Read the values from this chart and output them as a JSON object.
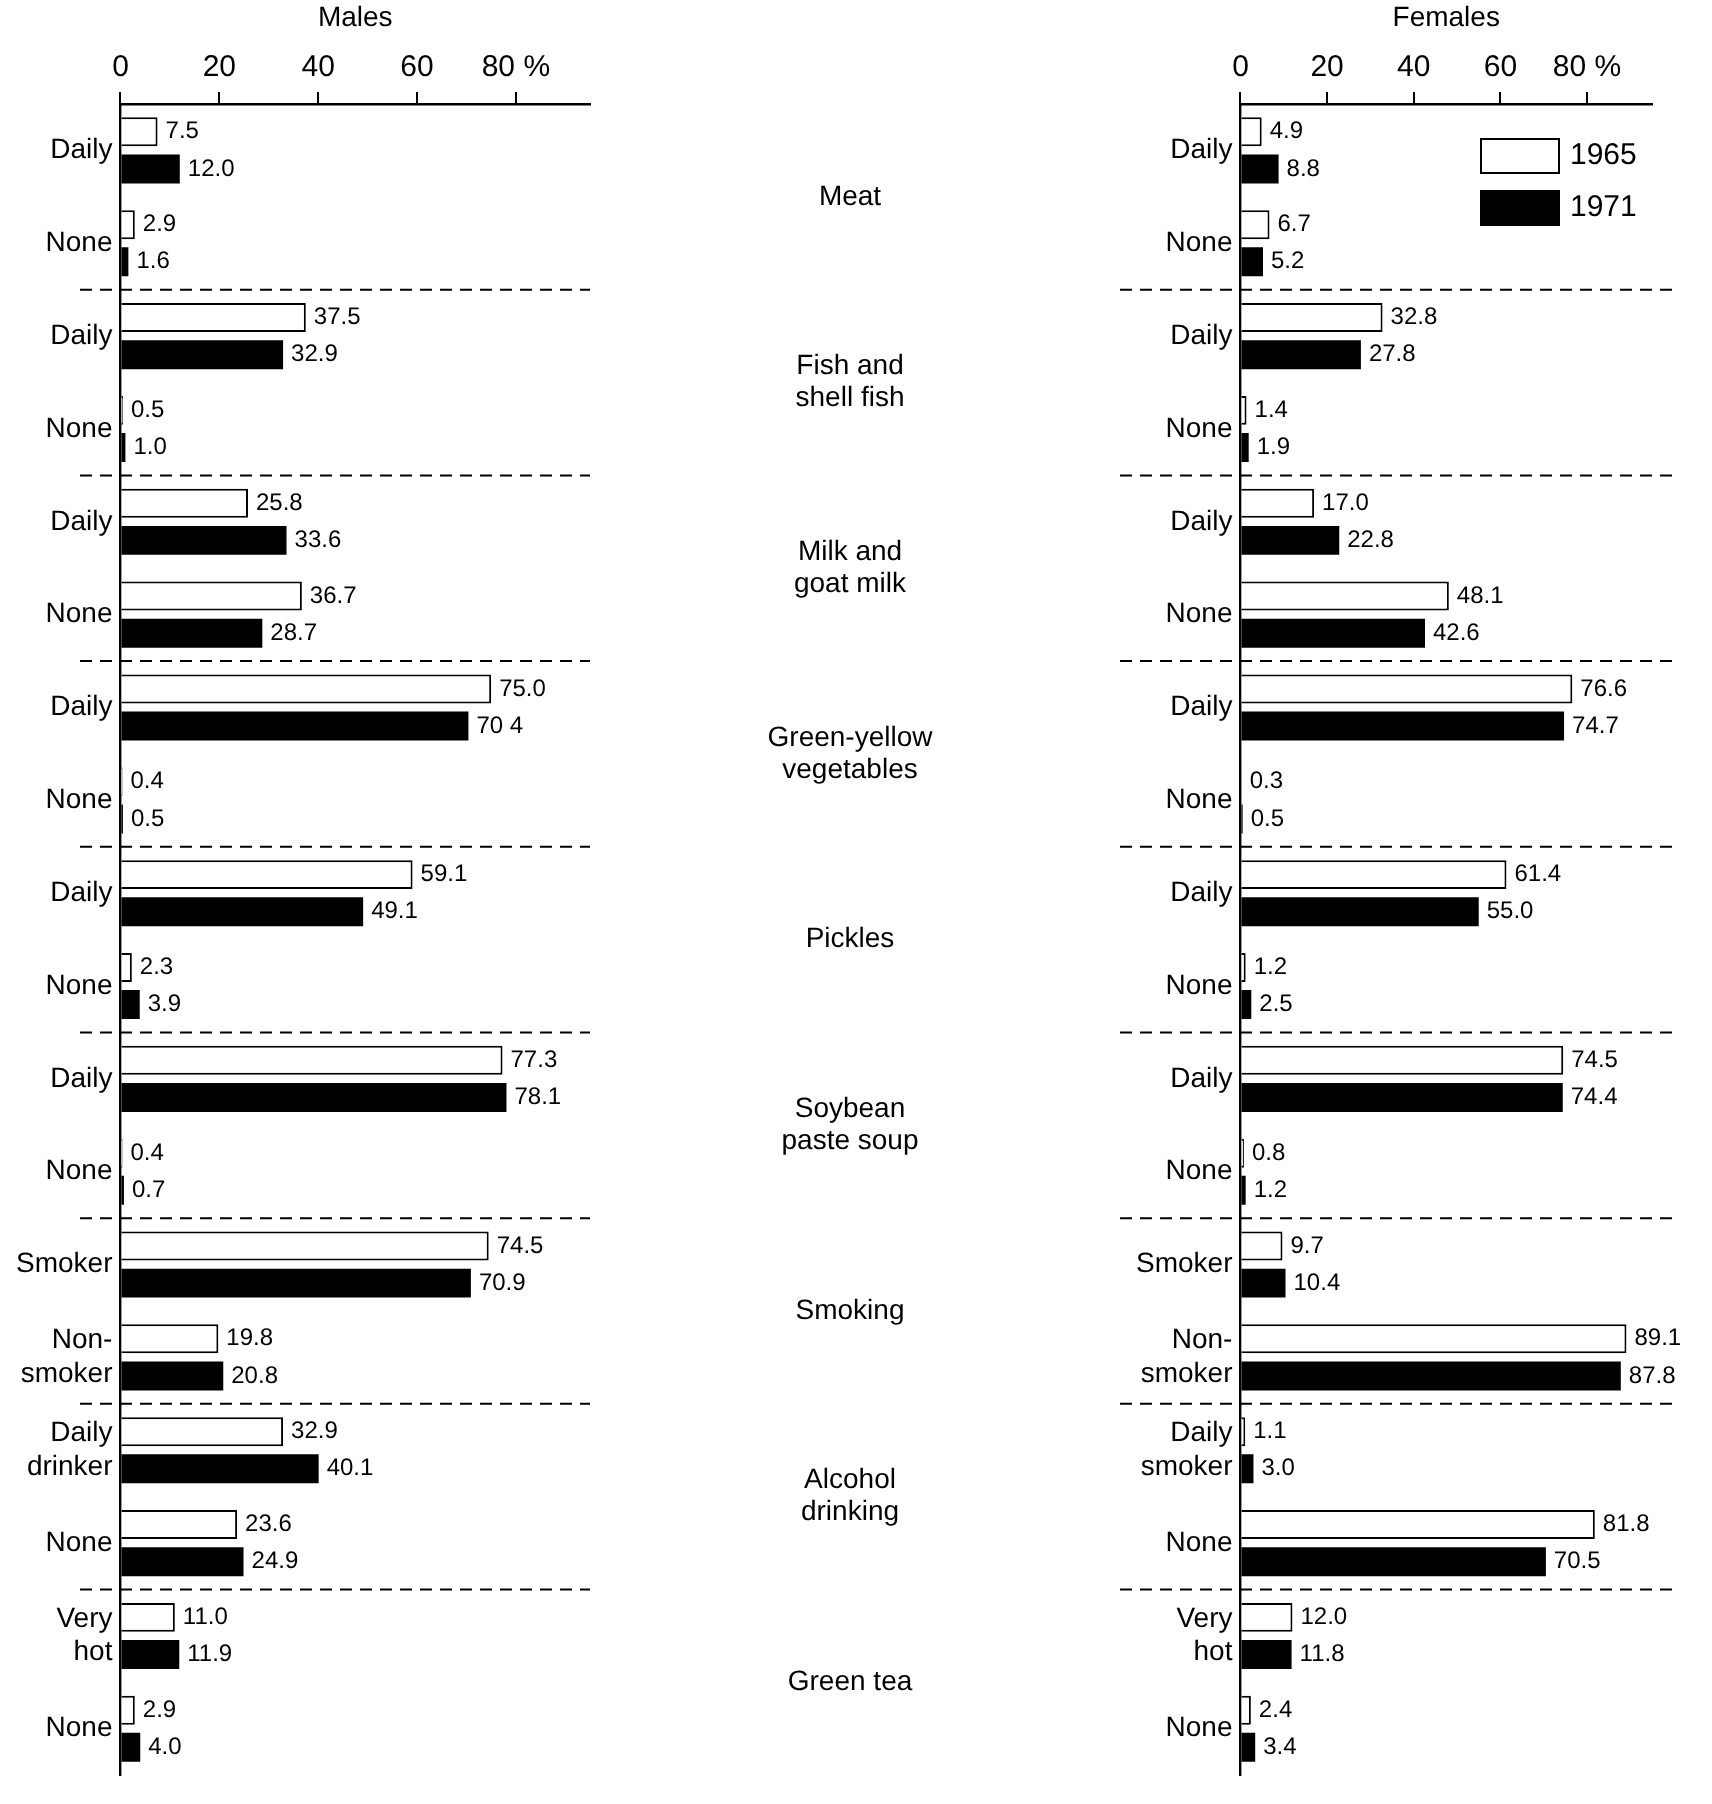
{
  "chart_data": [
    {
      "type": "bar",
      "orientation": "horizontal",
      "title": "Males",
      "categories": [
        "Daily",
        "None",
        "Daily",
        "None",
        "Daily",
        "None",
        "Daily",
        "None",
        "Daily",
        "None",
        "Daily",
        "None",
        "Smoker",
        "Non-smoker",
        "Daily drinker",
        "None",
        "Very hot",
        "None"
      ],
      "series": [
        {
          "color": "#ffffff",
          "values": [
            7.5,
            2.9,
            37.5,
            0.5,
            25.8,
            36.7,
            75.0,
            0.4,
            59.1,
            2.3,
            77.3,
            0.4,
            74.5,
            19.8,
            32.9,
            23.6,
            11.0,
            2.9
          ],
          "value_labels": [
            "7.5",
            "2.9",
            "37.5",
            "0.5",
            "25.8",
            "36.7",
            "75.0",
            "0.4",
            "59.1",
            "2.3",
            "77.3",
            "0.4",
            "74.5",
            "19.8",
            "32.9",
            "23.6",
            "11.0",
            "2.9"
          ]
        },
        {
          "color": "#000000",
          "values": [
            12.0,
            1.6,
            32.9,
            1.0,
            33.6,
            28.7,
            70.4,
            0.5,
            49.1,
            3.9,
            78.1,
            0.7,
            70.9,
            20.8,
            40.1,
            24.9,
            11.9,
            4.0
          ],
          "value_labels": [
            "12.0",
            "1.6",
            "32.9",
            "1.0",
            "33.6",
            "28.7",
            "70 4",
            "0.5",
            "49.1",
            "3.9",
            "78.1",
            "0.7",
            "70.9",
            "20.8",
            "40.1",
            "24.9",
            "11.9",
            "4.0"
          ]
        }
      ],
      "xlim": [
        0,
        95
      ],
      "xticks": [
        0,
        20,
        40,
        60,
        {
          "value": 80,
          "label": "80 %"
        }
      ],
      "grid": false,
      "legend": false,
      "annotations": [
        "Meat",
        "Fish and shell fish",
        "Milk and goat milk",
        "Green-yellow vegetables",
        "Pickles",
        "Soybean paste soup",
        "Smoking",
        "Alcohol drinking",
        "Green tea"
      ]
    },
    {
      "type": "bar",
      "orientation": "horizontal",
      "title": "Females",
      "categories": [
        "Daily",
        "None",
        "Daily",
        "None",
        "Daily",
        "None",
        "Daily",
        "None",
        "Daily",
        "None",
        "Daily",
        "None",
        "Smoker",
        "Non-smoker",
        "Daily smoker",
        "None",
        "Very hot",
        "None"
      ],
      "series": [
        {
          "name": "1965",
          "color": "#ffffff",
          "values": [
            4.9,
            6.7,
            32.8,
            1.4,
            17.0,
            48.1,
            76.6,
            0.3,
            61.4,
            1.2,
            74.5,
            0.8,
            9.7,
            89.1,
            1.1,
            81.8,
            12.0,
            2.4
          ],
          "value_labels": [
            "4.9",
            "6.7",
            "32.8",
            "1.4",
            "17.0",
            "48.1",
            "76.6",
            "0.3",
            "61.4",
            "1.2",
            "74.5",
            "0.8",
            "9.7",
            "89.1",
            "1.1",
            "81.8",
            "12.0",
            "2.4"
          ]
        },
        {
          "name": "1971",
          "color": "#000000",
          "values": [
            8.8,
            5.2,
            27.8,
            1.9,
            22.8,
            42.6,
            74.7,
            0.5,
            55.0,
            2.5,
            74.4,
            1.2,
            10.4,
            87.8,
            3.0,
            70.5,
            11.8,
            3.4
          ],
          "value_labels": [
            "8.8",
            "5.2",
            "27.8",
            "1.9",
            "22.8",
            "42.6",
            "74.7",
            "0.5",
            "55.0",
            "2.5",
            "74.4",
            "1.2",
            "10.4",
            "87.8",
            "3.0",
            "70.5",
            "11.8",
            "3.4"
          ]
        }
      ],
      "xlim": [
        0,
        95
      ],
      "xticks": [
        0,
        20,
        40,
        60,
        {
          "value": 80,
          "label": "80 %"
        }
      ],
      "grid": false,
      "legend": "top right"
    }
  ]
}
